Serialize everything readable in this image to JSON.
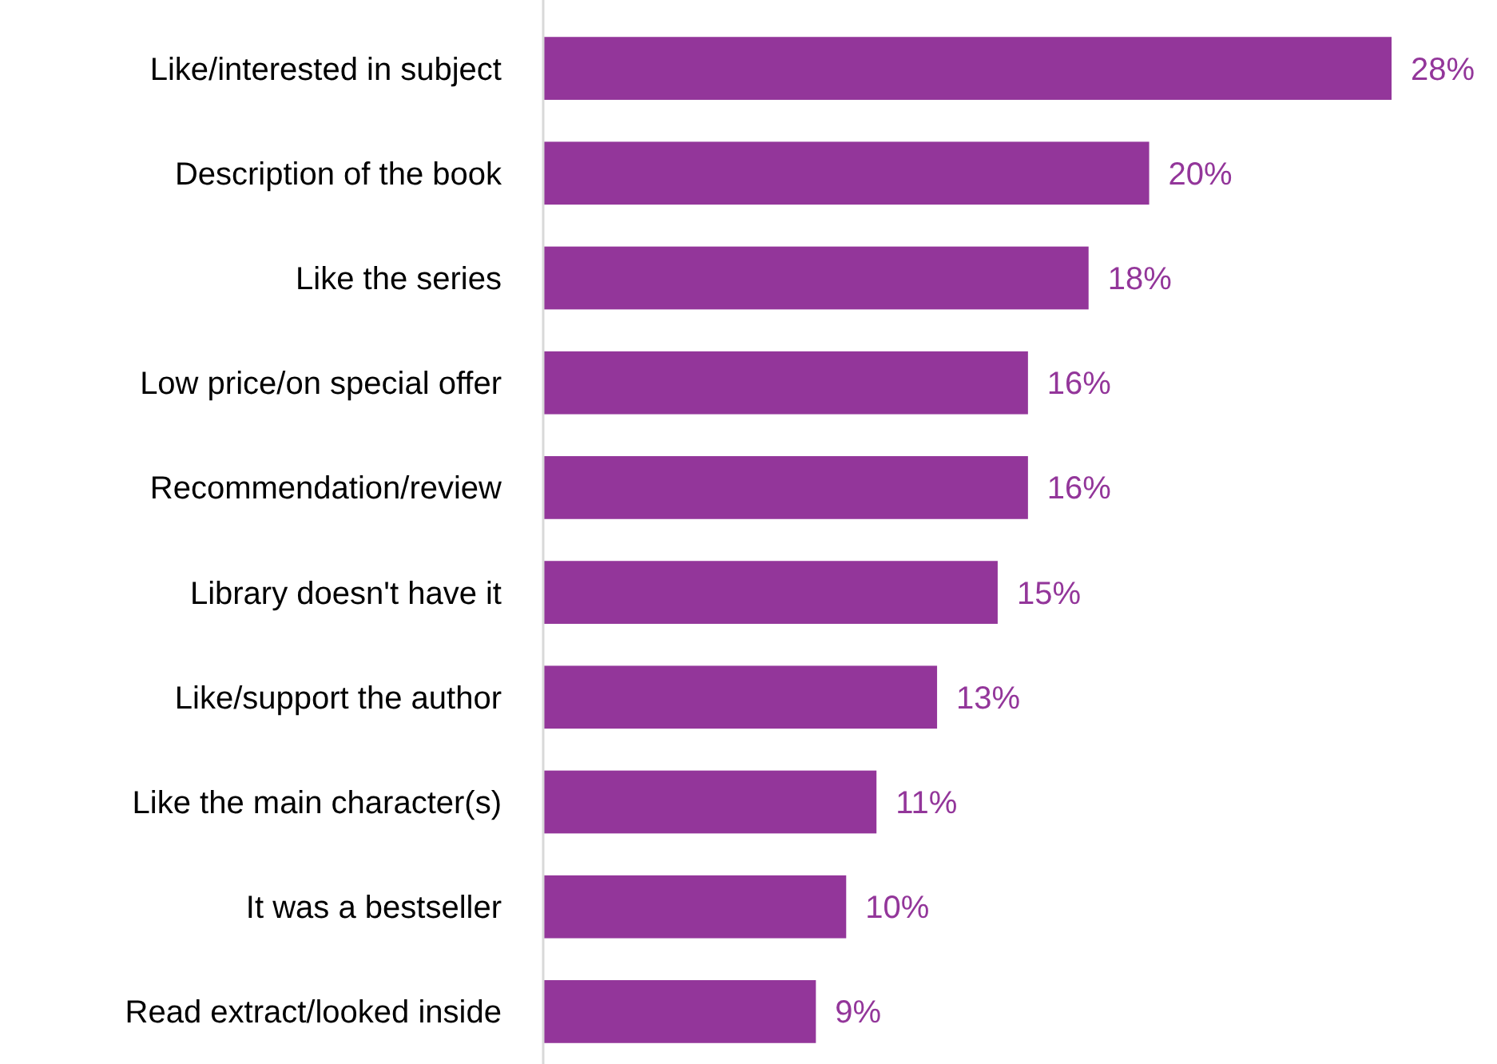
{
  "chart_data": {
    "type": "bar",
    "orientation": "horizontal",
    "categories": [
      "Like/interested in subject",
      "Description of the book",
      "Like the series",
      "Low price/on special offer",
      "Recommendation/review",
      "Library doesn't have it",
      "Like/support the author",
      "Like the main character(s)",
      "It was a bestseller",
      "Read extract/looked inside"
    ],
    "values": [
      28,
      20,
      18,
      16,
      16,
      15,
      13,
      11,
      10,
      9
    ],
    "value_labels": [
      "28%",
      "20%",
      "18%",
      "16%",
      "16%",
      "15%",
      "13%",
      "11%",
      "10%",
      "9%"
    ],
    "color": "#93369a",
    "xlim": [
      0,
      28
    ],
    "tick_labels": "y"
  }
}
